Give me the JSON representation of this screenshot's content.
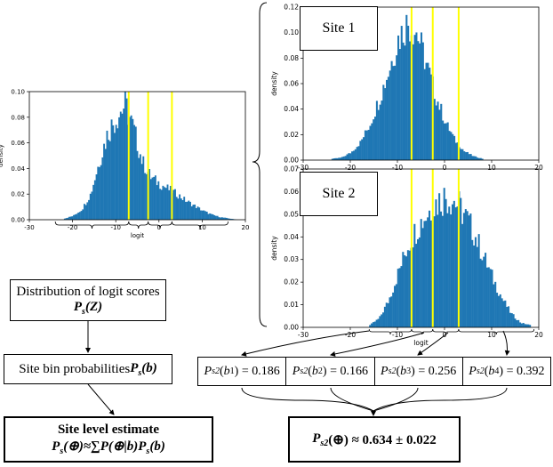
{
  "colors": {
    "bar": "#1f77b4",
    "threshold": "#ffff00"
  },
  "site1_label": "Site 1",
  "site2_label": "Site 2",
  "chart_data": [
    {
      "id": "overall",
      "type": "histogram",
      "title": "",
      "xlabel": "logit",
      "ylabel": "density",
      "xlim": [
        -30,
        20
      ],
      "ylim": [
        0,
        0.1
      ],
      "xticks": [
        -30,
        -20,
        -10,
        0,
        10,
        20
      ],
      "yticks": [
        0.0,
        0.02,
        0.04,
        0.06,
        0.08,
        0.1
      ],
      "ytick_labels": [
        "0.00",
        "0.02",
        "0.04",
        "0.06",
        "0.08",
        "0.10"
      ],
      "thresholds": [
        -7,
        -2.5,
        3
      ],
      "bins": {
        "x": [
          -22,
          -20,
          -18,
          -16,
          -14,
          -12,
          -10,
          -8,
          -6,
          -4,
          -2,
          0,
          2,
          4,
          6,
          8,
          10,
          12,
          14,
          16,
          18
        ],
        "density": [
          0.001,
          0.003,
          0.008,
          0.02,
          0.045,
          0.068,
          0.08,
          0.09,
          0.07,
          0.045,
          0.033,
          0.028,
          0.024,
          0.02,
          0.015,
          0.011,
          0.007,
          0.004,
          0.002,
          0.001,
          0.0
        ]
      }
    },
    {
      "id": "site1",
      "type": "histogram",
      "title": "Site 1",
      "xlabel": "",
      "ylabel": "density",
      "xlim": [
        -30,
        20
      ],
      "ylim": [
        0,
        0.12
      ],
      "xticks": [
        -30,
        -20,
        -10,
        0,
        10,
        20
      ],
      "yticks": [
        0.0,
        0.02,
        0.04,
        0.06,
        0.08,
        0.1,
        0.12
      ],
      "ytick_labels": [
        "0.00",
        "0.02",
        "0.04",
        "0.06",
        "0.08",
        "0.10",
        "0.12"
      ],
      "thresholds": [
        -7,
        -2.5,
        3
      ],
      "bins": {
        "x": [
          -24,
          -22,
          -20,
          -18,
          -16,
          -14,
          -12,
          -10,
          -8,
          -6,
          -4,
          -2,
          0,
          2,
          4,
          6,
          8
        ],
        "density": [
          0.001,
          0.002,
          0.006,
          0.014,
          0.028,
          0.048,
          0.07,
          0.095,
          0.108,
          0.1,
          0.075,
          0.05,
          0.03,
          0.016,
          0.007,
          0.003,
          0.001
        ]
      }
    },
    {
      "id": "site2",
      "type": "histogram",
      "title": "Site 2",
      "xlabel": "logit",
      "ylabel": "density",
      "xlim": [
        -30,
        20
      ],
      "ylim": [
        0,
        0.07
      ],
      "xticks": [
        -30,
        -20,
        -10,
        0,
        10,
        20
      ],
      "yticks": [
        0.0,
        0.01,
        0.02,
        0.03,
        0.04,
        0.05,
        0.06,
        0.07
      ],
      "ytick_labels": [
        "0.00",
        "0.01",
        "0.02",
        "0.03",
        "0.04",
        "0.05",
        "0.06",
        "0.07"
      ],
      "thresholds": [
        -7,
        -2.5,
        3
      ],
      "bins": {
        "x": [
          -16,
          -14,
          -12,
          -10,
          -8,
          -6,
          -4,
          -2,
          0,
          2,
          4,
          6,
          8,
          10,
          12,
          14,
          16,
          18
        ],
        "density": [
          0.001,
          0.004,
          0.012,
          0.024,
          0.036,
          0.044,
          0.05,
          0.055,
          0.058,
          0.056,
          0.05,
          0.042,
          0.032,
          0.022,
          0.013,
          0.006,
          0.002,
          0.001
        ]
      }
    }
  ],
  "boxes": {
    "distribution": {
      "line1": "Distribution of logit scores",
      "line2": "P",
      "line2_sub": "s",
      "line2_rest": "(Z)"
    },
    "bin_prob": {
      "text": "Site bin probabilities ",
      "bold": "P",
      "sub": "s",
      "rest": "(b)"
    },
    "site_estimate": {
      "title": "Site level estimate",
      "formula": "P",
      "sub": "s",
      "rest": "(⊕)≈∑P(⊕|b)P",
      "sub2": "s",
      "rest2": "(b)",
      "sum_index": "b"
    },
    "final": {
      "p": "P",
      "sub": "s2",
      "rest": "(⊕) ≈ 0.634 ± 0.022"
    }
  },
  "bin_probs": [
    {
      "sub": "s2",
      "bin": "b",
      "bin_sub": "1",
      "value": "= 0.186"
    },
    {
      "sub": "s2",
      "bin": "b",
      "bin_sub": "2",
      "value": "= 0.166"
    },
    {
      "sub": "s2",
      "bin": "b",
      "bin_sub": "3",
      "value": "= 0.256"
    },
    {
      "sub": "s2",
      "bin": "b",
      "bin_sub": "4",
      "value": "= 0.392"
    }
  ]
}
